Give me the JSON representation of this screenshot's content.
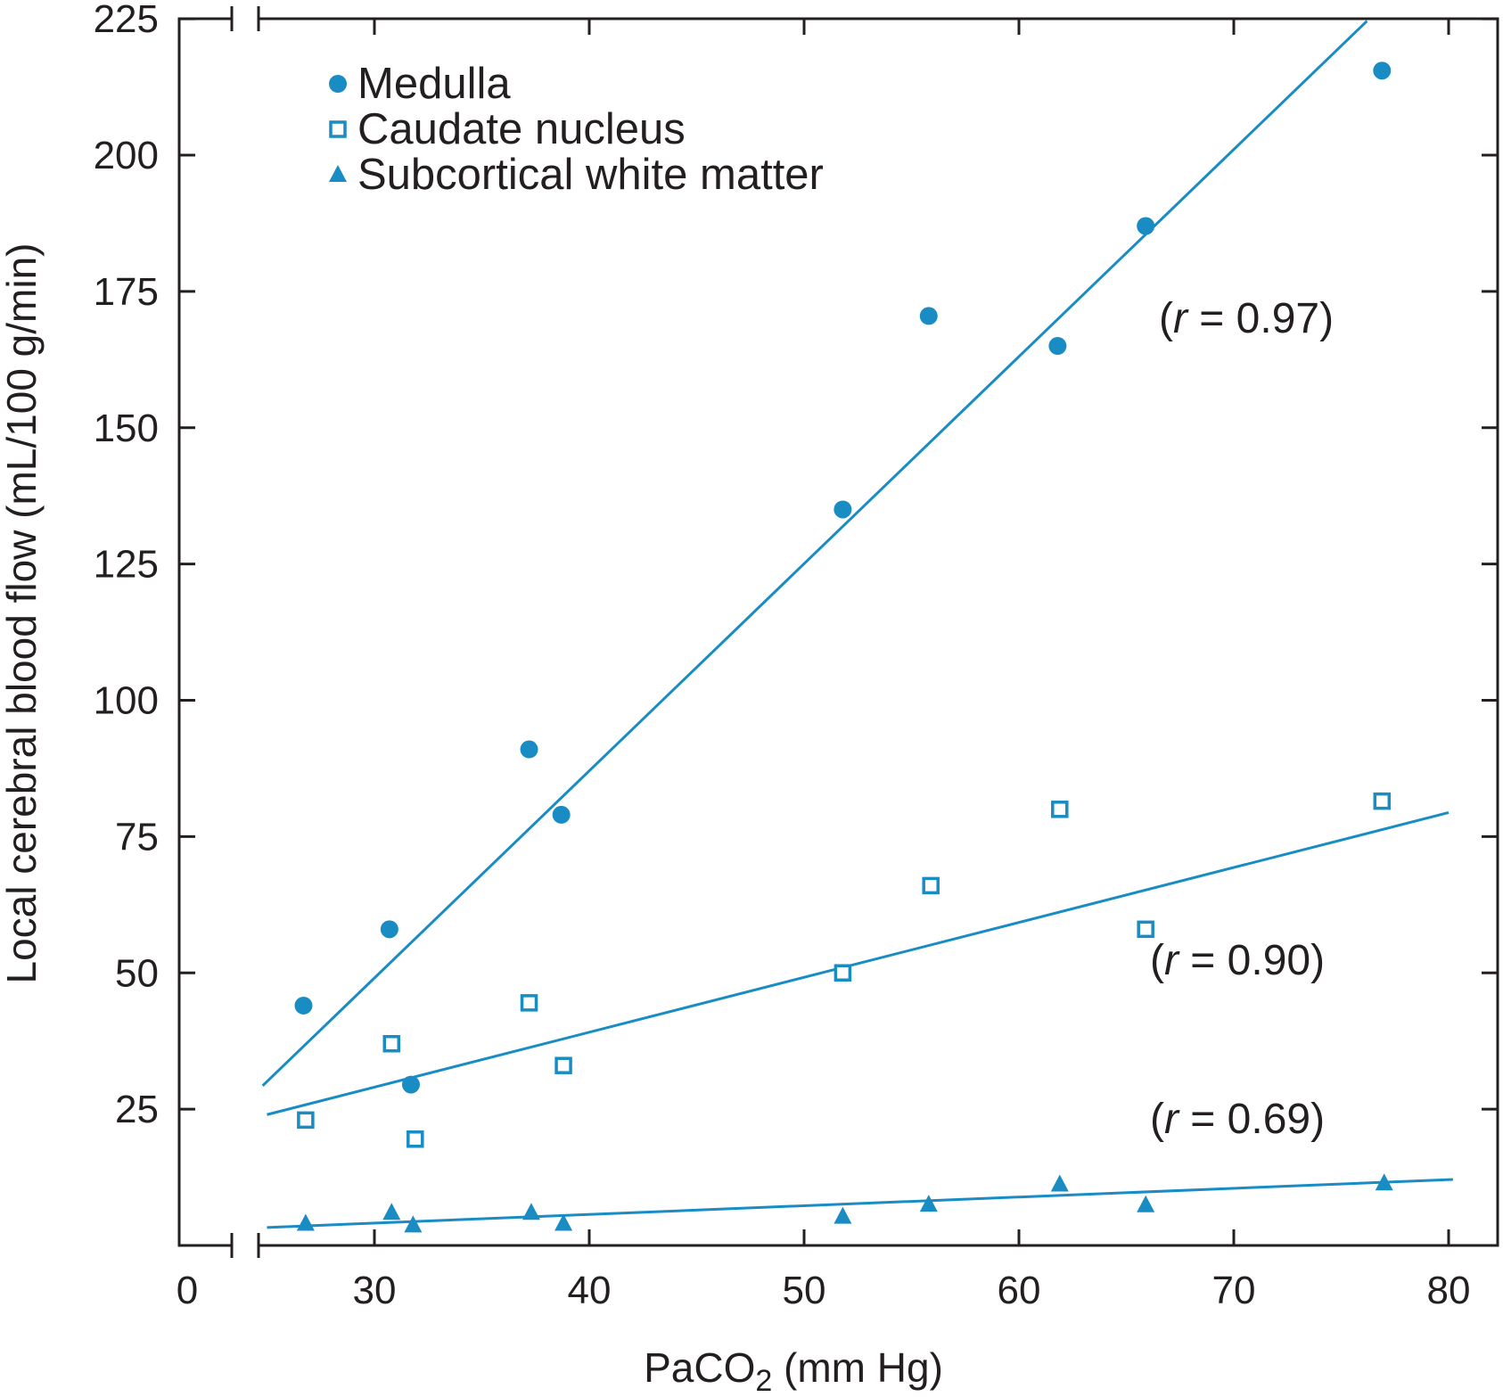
{
  "chart_data": {
    "type": "scatter",
    "title": "",
    "xlabel_main": "PaCO",
    "xlabel_sub": "2",
    "xlabel_unit": " (mm Hg)",
    "ylabel": "Local cerebral blood flow (mL/100 g/min)",
    "xlim": [
      0,
      80
    ],
    "ylim": [
      0,
      225
    ],
    "x_axis_break": "between 0 and 30",
    "xticks": [
      0,
      30,
      40,
      50,
      60,
      70,
      80
    ],
    "xtick_labels": [
      "0",
      "30",
      "40",
      "50",
      "60",
      "70",
      "80"
    ],
    "yticks": [
      25,
      50,
      75,
      100,
      125,
      150,
      175,
      200,
      225
    ],
    "ytick_labels": [
      "25",
      "50",
      "75",
      "100",
      "125",
      "150",
      "175",
      "200",
      "225"
    ],
    "grid": false,
    "legend_position": "top-left",
    "color": "#1a8cc4",
    "series": [
      {
        "name": "Medulla",
        "marker": "filled-circle",
        "x": [
          26.7,
          30.7,
          31.7,
          37.2,
          38.7,
          51.8,
          55.8,
          61.8,
          65.9,
          76.9
        ],
        "y": [
          44,
          58,
          29.5,
          91,
          79,
          135,
          170.5,
          165,
          187,
          215.5
        ],
        "fit": {
          "x": [
            24.8,
            76.2
          ],
          "y": [
            29.3,
            224.6
          ]
        },
        "annotation": {
          "open": "(",
          "var": "r",
          "rest": " = 0.97)"
        }
      },
      {
        "name": "Caudate nucleus",
        "marker": "open-square",
        "x": [
          26.8,
          30.8,
          31.9,
          37.2,
          38.8,
          51.8,
          55.9,
          61.9,
          65.9,
          76.9
        ],
        "y": [
          23,
          37,
          19.5,
          44.5,
          33,
          50,
          66,
          80,
          58,
          81.5
        ],
        "fit": {
          "x": [
            25,
            80
          ],
          "y": [
            24,
            79.4
          ]
        },
        "annotation": {
          "open": "(",
          "var": "r",
          "rest": " = 0.90)"
        }
      },
      {
        "name": "Subcortical white matter",
        "marker": "filled-triangle",
        "x": [
          26.8,
          30.8,
          31.8,
          37.3,
          38.8,
          51.8,
          55.8,
          61.9,
          65.9,
          77
        ],
        "y": [
          4,
          6,
          3.7,
          6,
          4,
          5.3,
          7.5,
          11.2,
          7.4,
          11.4
        ],
        "fit": {
          "x": [
            25,
            80.2
          ],
          "y": [
            3.3,
            12.1
          ]
        },
        "annotation": {
          "open": "(",
          "var": "r",
          "rest": " = 0.69)"
        }
      }
    ]
  }
}
